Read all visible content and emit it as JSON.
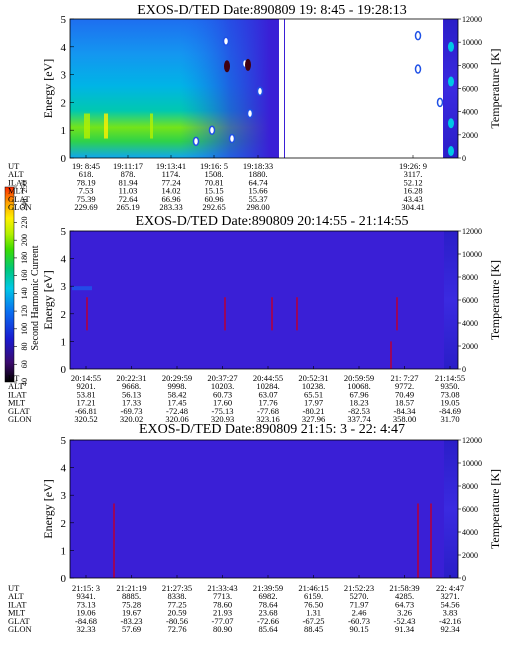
{
  "colors": {
    "plasma_bg": "#3a1fd6",
    "frame": "#000000",
    "colorbar": [
      "#000000",
      "#3b0a6e",
      "#1a1ad0",
      "#0a6ef0",
      "#00c8e6",
      "#00c878",
      "#3cdc00",
      "#b4f000",
      "#fff000",
      "#ffa000",
      "#ff2a00"
    ]
  },
  "colorbar": {
    "label": "Second Harmonic Current",
    "ticks": [
      "40",
      "60",
      "80",
      "100",
      "120",
      "140",
      "160",
      "180",
      "200",
      "220",
      "240",
      "250"
    ]
  },
  "row_labels": [
    "UT",
    "ALT",
    "ILAT",
    "MLT",
    "GLAT",
    "GLON"
  ],
  "chart_data": [
    {
      "type": "heatmap",
      "title": "EXOS-D/TED   Date:890809  19: 8:45 - 19:28:13",
      "ylabel": "Energy [eV]",
      "y2label": "Temperature [K]",
      "ylim": [
        0,
        5
      ],
      "y2lim": [
        0,
        12000
      ],
      "yticks": [
        "0",
        "1",
        "2",
        "3",
        "4",
        "5"
      ],
      "y2ticks": [
        "0",
        "2000",
        "4000",
        "6000",
        "8000",
        "10000",
        "12000"
      ],
      "orbit_table": [
        [
          "19: 8:45",
          "618.",
          "78.19",
          "7.53",
          "75.39",
          "229.69"
        ],
        [
          "19:11:17",
          "878.",
          "81.94",
          "11.03",
          "72.64",
          "265.19"
        ],
        [
          "19:13:41",
          "1174.",
          "77.24",
          "14.02",
          "66.96",
          "283.33"
        ],
        [
          "19:16: 5",
          "1508.",
          "70.81",
          "15.15",
          "60.96",
          "292.65"
        ],
        [
          "19:18:33",
          "1880.",
          "64.74",
          "15.66",
          "55.37",
          "298.00"
        ],
        [
          "19:26: 9",
          "3117.",
          "52.12",
          "16.28",
          "43.43",
          "304.41"
        ]
      ]
    },
    {
      "type": "heatmap",
      "title": "EXOS-D/TED   Date:890809  20:14:55 - 21:14:55",
      "ylabel": "Energy [eV]",
      "y2label": "Temperature [K]",
      "ylim": [
        0,
        5
      ],
      "y2lim": [
        0,
        12000
      ],
      "yticks": [
        "0",
        "1",
        "2",
        "3",
        "4",
        "5"
      ],
      "y2ticks": [
        "0",
        "2000",
        "4000",
        "6000",
        "8000",
        "10000",
        "12000"
      ],
      "orbit_table": [
        [
          "20:14:55",
          "9201.",
          "53.81",
          "17.21",
          "-66.81",
          "320.52"
        ],
        [
          "20:22:31",
          "9668.",
          "56.13",
          "17.33",
          "-69.73",
          "320.02"
        ],
        [
          "20:29:59",
          "9998.",
          "58.42",
          "17.45",
          "-72.48",
          "320.06"
        ],
        [
          "20:37:27",
          "10203.",
          "60.73",
          "17.60",
          "-75.13",
          "320.93"
        ],
        [
          "20:44:55",
          "10284.",
          "63.07",
          "17.76",
          "-77.68",
          "323.16"
        ],
        [
          "20:52:31",
          "10238.",
          "65.51",
          "17.97",
          "-80.21",
          "327.96"
        ],
        [
          "20:59:59",
          "10068.",
          "67.96",
          "18.23",
          "-82.53",
          "337.74"
        ],
        [
          "21: 7:27",
          "9772.",
          "70.49",
          "18.57",
          "-84.34",
          "358.00"
        ],
        [
          "21:14:55",
          "9350.",
          "73.08",
          "19.05",
          "-84.69",
          "31.70"
        ]
      ]
    },
    {
      "type": "heatmap",
      "title": "EXOS-D/TED   Date:890809  21:15: 3 - 22: 4:47",
      "ylabel": "Energy [eV]",
      "y2label": "Temperature [K]",
      "ylim": [
        0,
        5
      ],
      "y2lim": [
        0,
        12000
      ],
      "yticks": [
        "0",
        "1",
        "2",
        "3",
        "4",
        "5"
      ],
      "y2ticks": [
        "0",
        "2000",
        "4000",
        "6000",
        "8000",
        "10000",
        "12000"
      ],
      "orbit_table": [
        [
          "21:15: 3",
          "9341.",
          "73.13",
          "19.06",
          "-84.68",
          "32.33"
        ],
        [
          "21:21:19",
          "8885.",
          "75.28",
          "19.67",
          "-83.23",
          "57.69"
        ],
        [
          "21:27:35",
          "8338.",
          "77.25",
          "20.59",
          "-80.56",
          "72.76"
        ],
        [
          "21:33:43",
          "7713.",
          "78.60",
          "21.93",
          "-77.07",
          "80.90"
        ],
        [
          "21:39:59",
          "6982.",
          "78.64",
          "23.68",
          "-72.66",
          "85.64"
        ],
        [
          "21:46:15",
          "6159.",
          "76.50",
          "1.31",
          "-67.25",
          "88.45"
        ],
        [
          "21:52:23",
          "5270.",
          "71.97",
          "2.46",
          "-60.73",
          "90.15"
        ],
        [
          "21:58:39",
          "4285.",
          "64.73",
          "3.26",
          "-52.43",
          "91.34"
        ],
        [
          "22: 4:47",
          "3271.",
          "54.56",
          "3.83",
          "-42.16",
          "92.34"
        ]
      ]
    }
  ]
}
